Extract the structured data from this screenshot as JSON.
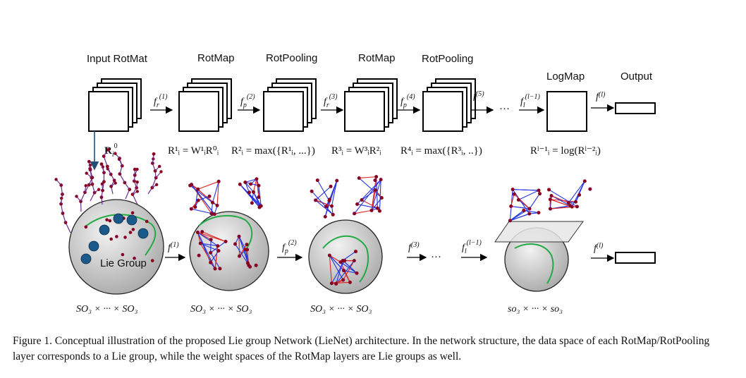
{
  "layers": {
    "input": "Input RotMat",
    "rotmap1": "RotMap",
    "rotpool1": "RotPooling",
    "rotmap2": "RotMap",
    "rotpool2": "RotPooling",
    "logmap": "LogMap",
    "output": "Output"
  },
  "top_functions": {
    "f1": "f",
    "f1_sub": "r",
    "f1_sup": "(1)",
    "f2": "f",
    "f2_sub": "p",
    "f2_sup": "(2)",
    "f3": "f",
    "f3_sub": "r",
    "f3_sup": "(3)",
    "f4": "f",
    "f4_sub": "p",
    "f4_sup": "(4)",
    "f5": "f",
    "f5_sup": "(5)",
    "dots": "···",
    "fl1": "f",
    "fl1_sub": "l",
    "fl1_sup": "(l−1)",
    "fl": "f",
    "fl_sup": "(l)"
  },
  "equations": {
    "r0": "R",
    "r0_sub": "i",
    "r0_sup": "0",
    "eq1": "R¹ᵢ = W¹ᵢR⁰ᵢ",
    "eq2": "R²ᵢ = max({R¹ᵢ, ...})",
    "eq3": "R³ᵢ = W³ᵢR²ᵢ",
    "eq4": "R⁴ᵢ = max({R³ᵢ, ..})",
    "eq5": "Rˡ⁻¹ᵢ = log(Rˡ⁻²ᵢ)"
  },
  "bottom": {
    "lie_group": "Lie Group",
    "f1": "f",
    "f1_sup": "(1)",
    "f2": "f",
    "f2_sub": "p",
    "f2_sup": "(2)",
    "f3": "f",
    "f3_sup": "(3)",
    "dots": "···",
    "fl1": "f",
    "fl1_sub": "l",
    "fl1_sup": "(l−1)",
    "fl": "f",
    "fl_sup": "(l)"
  },
  "space_labels": [
    "SO₃ × ··· × SO₃",
    "SO₃ × ··· × SO₃",
    "SO₃ × ··· × SO₃",
    "so₃ × ··· × so₃"
  ],
  "caption": "Figure 1. Conceptual illustration of the proposed Lie group Network (LieNet) architecture. In the network structure, the data space of each RotMap/RotPooling layer corresponds to a Lie group, while the weight spaces of the RotMap layers are Lie groups as well.",
  "colors": {
    "sphere": "#c8c8c8",
    "blue_edge": "#2233dd",
    "red_edge": "#dd2222",
    "green_curve": "#22aa44",
    "joint": "#880022",
    "big_dot": "#1a5a8a"
  }
}
